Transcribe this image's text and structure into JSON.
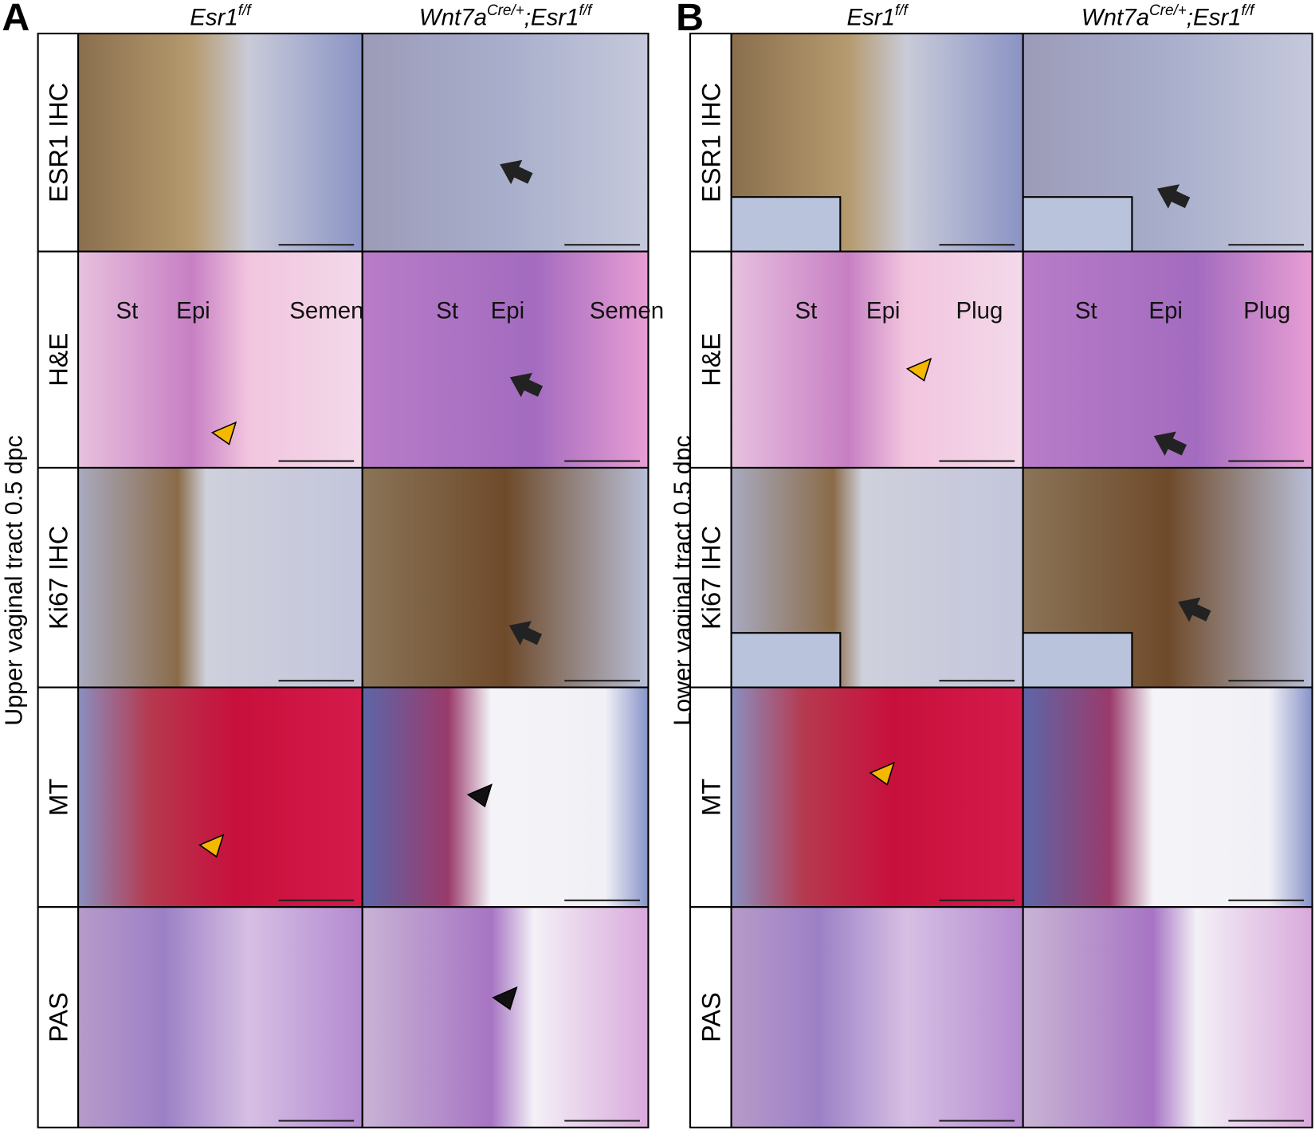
{
  "panels": [
    {
      "letter": "A",
      "side_label": "Upper vaginal tract 0.5 dpc",
      "columns": [
        [
          {
            "text": "Esr1"
          },
          {
            "text": "f/f",
            "sup": true
          }
        ],
        [
          {
            "text": "Wnt7a"
          },
          {
            "text": "Cre/+",
            "sup": true
          },
          {
            "text": ";Esr1"
          },
          {
            "text": "f/f",
            "sup": true
          }
        ]
      ],
      "rows": [
        "ESR1 IHC",
        "H&E",
        "Ki67 IHC",
        "MT",
        "PAS"
      ],
      "he_annotations": [
        [
          "St",
          "Epi",
          "Semen"
        ],
        [
          "St",
          "Epi",
          "Semen"
        ]
      ]
    },
    {
      "letter": "B",
      "side_label": "Lower vaginal tract 0.5 dpc",
      "columns": [
        [
          {
            "text": "Esr1"
          },
          {
            "text": "f/f",
            "sup": true
          }
        ],
        [
          {
            "text": "Wnt7a"
          },
          {
            "text": "Cre/+",
            "sup": true
          },
          {
            "text": ";Esr1"
          },
          {
            "text": "f/f",
            "sup": true
          }
        ]
      ],
      "rows": [
        "ESR1 IHC",
        "H&E",
        "Ki67 IHC",
        "MT",
        "PAS"
      ],
      "he_annotations": [
        [
          "St",
          "Epi",
          "Plug"
        ],
        [
          "St",
          "Epi",
          "Plug"
        ]
      ]
    }
  ]
}
